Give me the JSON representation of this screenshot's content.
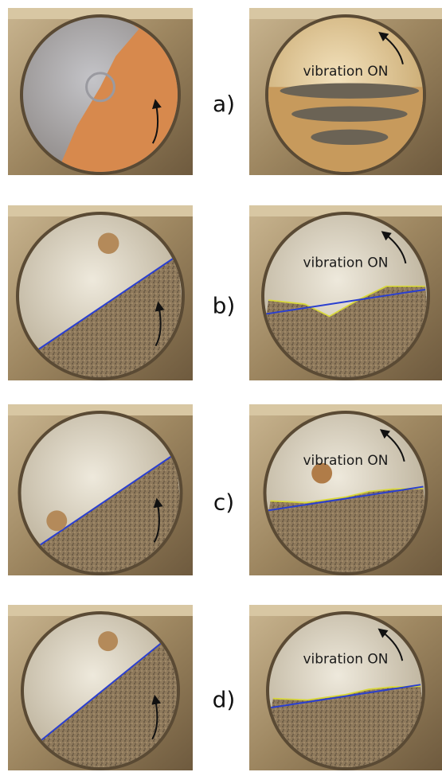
{
  "panels": [
    {
      "label": "a)",
      "overlay_text": "vibration ON"
    },
    {
      "label": "b)",
      "overlay_text": "vibration ON"
    },
    {
      "label": "c)",
      "overlay_text": "vibration ON"
    },
    {
      "label": "d)",
      "overlay_text": "vibration ON"
    }
  ]
}
